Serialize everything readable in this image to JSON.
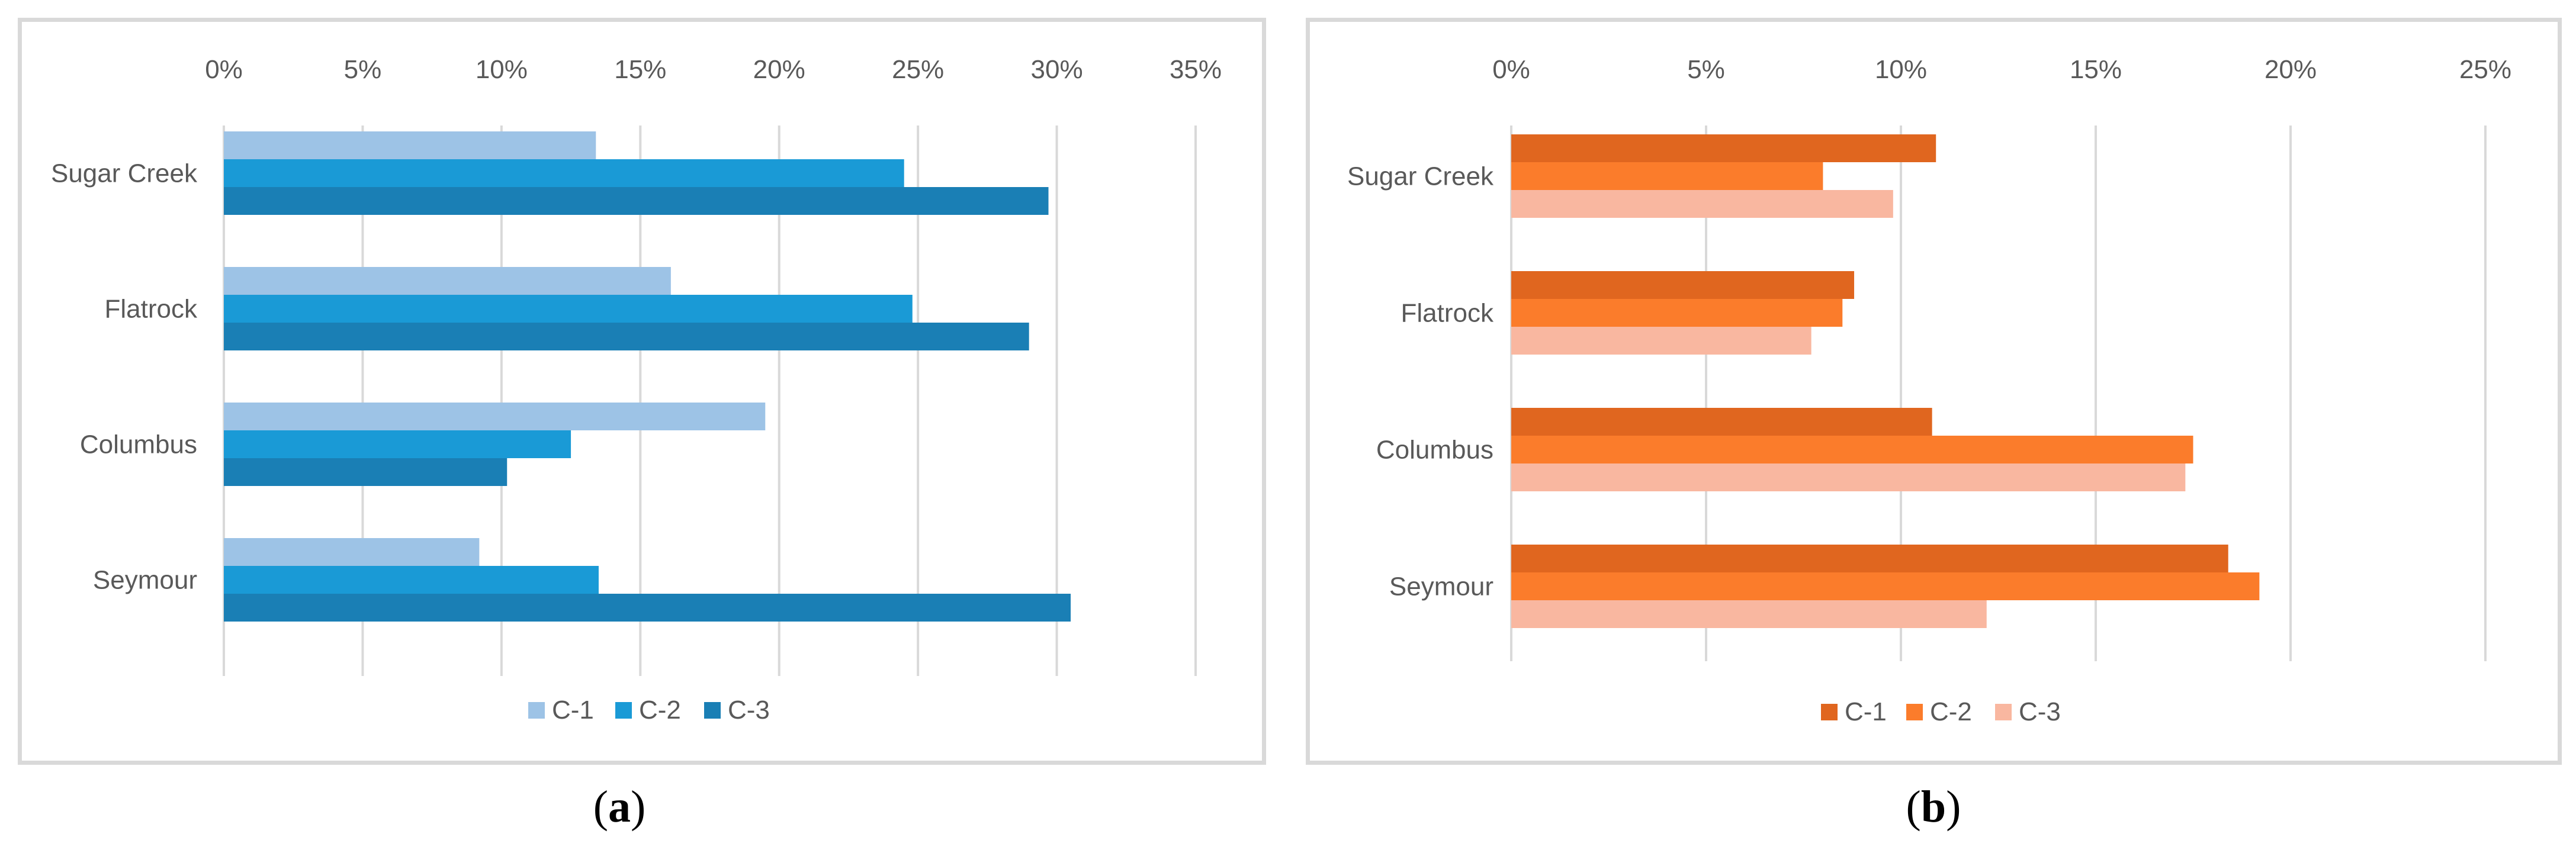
{
  "chart_data": [
    {
      "type": "bar",
      "orientation": "horizontal",
      "panel": "a",
      "categories": [
        "Sugar Creek",
        "Flatrock",
        "Columbus",
        "Seymour"
      ],
      "series": [
        {
          "name": "C-1",
          "color": "#9dc3e6",
          "values": [
            13.4,
            16.1,
            19.5,
            9.2
          ]
        },
        {
          "name": "C-2",
          "color": "#1a9ad6",
          "values": [
            24.5,
            24.8,
            12.5,
            13.5
          ]
        },
        {
          "name": "C-3",
          "color": "#1a7fb5",
          "values": [
            29.7,
            29.0,
            10.2,
            30.5
          ]
        }
      ],
      "xlim": [
        0,
        35
      ],
      "xticks": [
        "0%",
        "5%",
        "10%",
        "15%",
        "20%",
        "25%",
        "30%",
        "35%"
      ],
      "x_axis_position": "top",
      "grid": true,
      "legend": "bottom"
    },
    {
      "type": "bar",
      "orientation": "horizontal",
      "panel": "b",
      "categories": [
        "Sugar Creek",
        "Flatrock",
        "Columbus",
        "Seymour"
      ],
      "series": [
        {
          "name": "C-1",
          "color": "#e0661f",
          "values": [
            10.9,
            8.8,
            10.8,
            18.4
          ]
        },
        {
          "name": "C-2",
          "color": "#fb7c2b",
          "values": [
            8.0,
            8.5,
            17.5,
            19.2
          ]
        },
        {
          "name": "C-3",
          "color": "#f9b7a0",
          "values": [
            9.8,
            7.7,
            17.3,
            12.2
          ]
        }
      ],
      "xlim": [
        0,
        25
      ],
      "xticks": [
        "0%",
        "5%",
        "10%",
        "15%",
        "20%",
        "25%"
      ],
      "x_axis_position": "top",
      "grid": true,
      "legend": "bottom"
    }
  ],
  "captions": {
    "a": "a",
    "b": "b"
  }
}
